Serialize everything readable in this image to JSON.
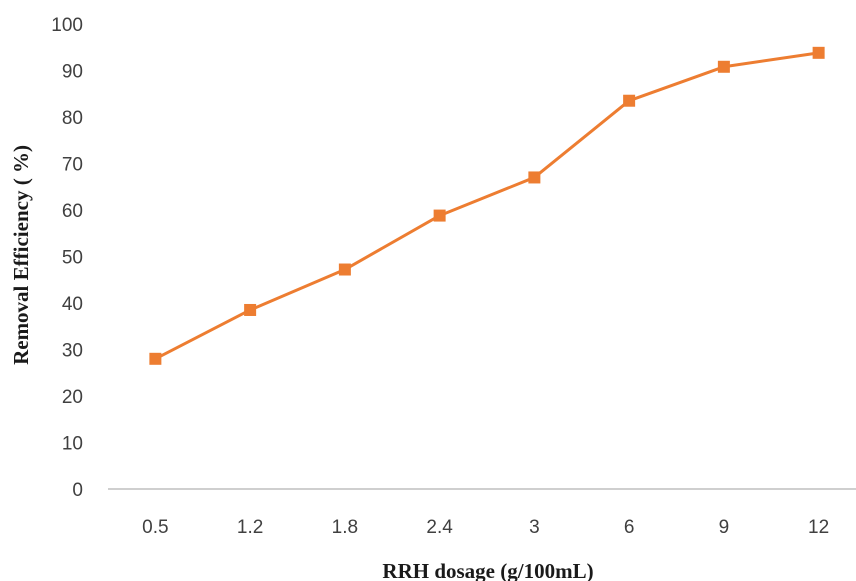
{
  "chart_data": {
    "type": "line",
    "title": "",
    "xlabel": "RRH dosage (g/100mL)",
    "ylabel": "Removal Efficiency ( %)",
    "categories": [
      "0.5",
      "1.2",
      "1.8",
      "2.4",
      "3",
      "6",
      "9",
      "12"
    ],
    "series": [
      {
        "values": [
          28,
          38.5,
          47.2,
          58.8,
          67,
          83.5,
          90.8,
          93.8
        ]
      }
    ],
    "ylim": [
      0,
      100
    ],
    "yticks": [
      "0",
      "10",
      "20",
      "30",
      "40",
      "50",
      "60",
      "70",
      "80",
      "90",
      "100"
    ],
    "grid": false,
    "legend": "none",
    "marker": "square",
    "colors": {
      "line": "#ED7D31",
      "axis": "#BFBFBF"
    }
  }
}
